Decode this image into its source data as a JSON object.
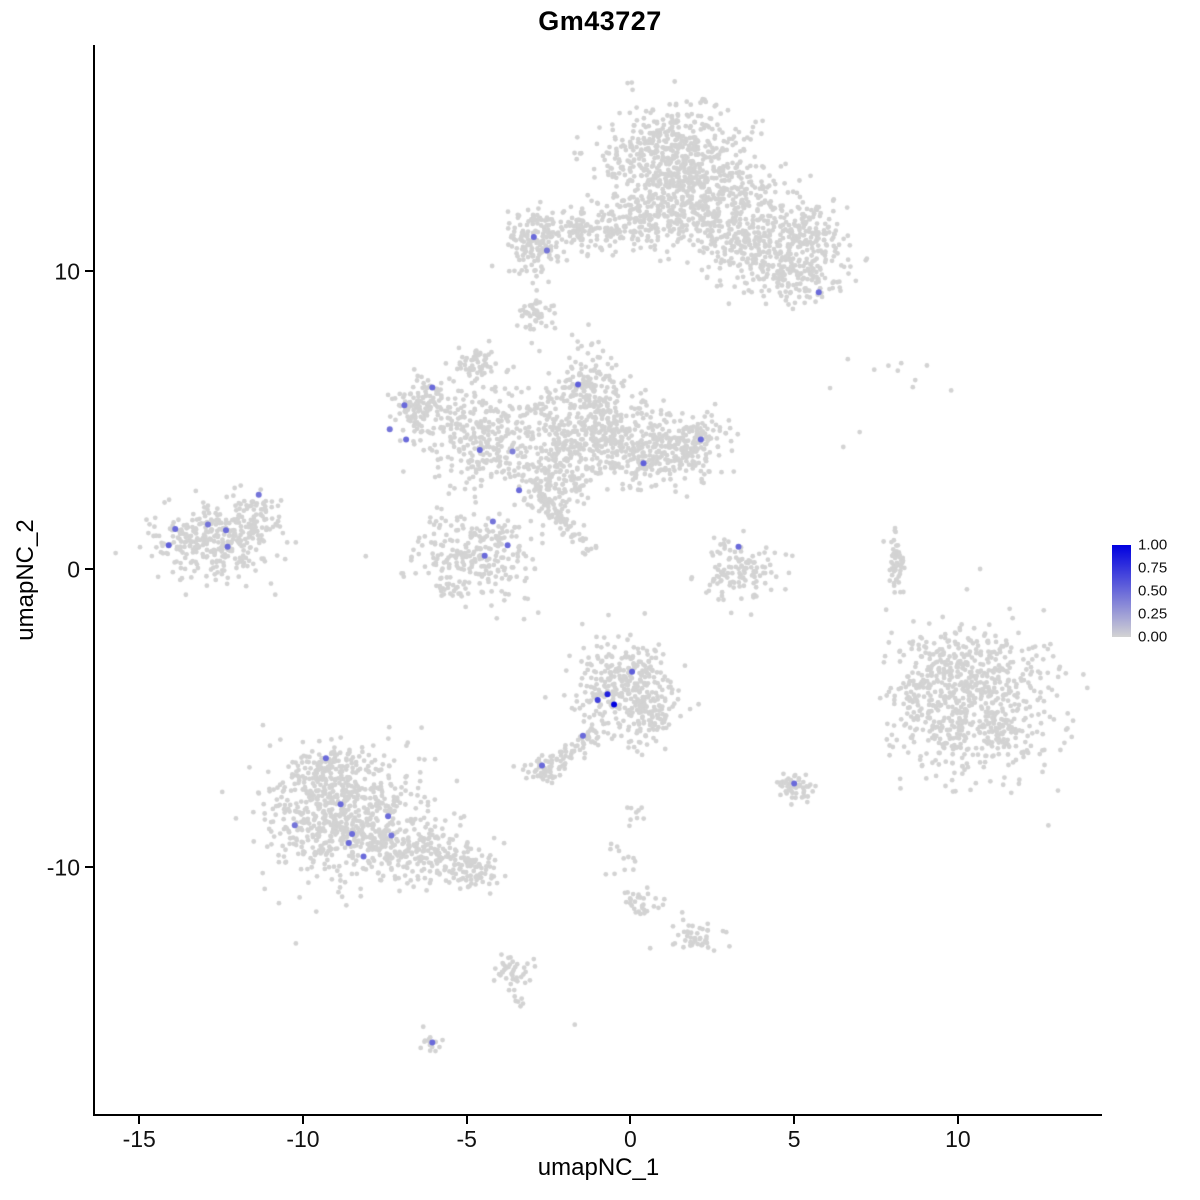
{
  "chart_data": {
    "type": "scatter",
    "title": "Gm43727",
    "xlabel": "umapNC_1",
    "ylabel": "umapNC_2",
    "xlim": [
      -16.35,
      14.4
    ],
    "ylim": [
      -18.3,
      17.6
    ],
    "grid": false,
    "legend_position": "right",
    "x_ticks": [
      {
        "value": -15,
        "label": "-15"
      },
      {
        "value": -10,
        "label": "-10"
      },
      {
        "value": -5,
        "label": "-5"
      },
      {
        "value": 0,
        "label": "0"
      },
      {
        "value": 5,
        "label": "5"
      },
      {
        "value": 10,
        "label": "10"
      }
    ],
    "y_ticks": [
      {
        "value": 10,
        "label": "10"
      },
      {
        "value": 0,
        "label": "0"
      },
      {
        "value": -10,
        "label": "-10"
      }
    ],
    "legend": {
      "ticks": [
        {
          "value": 1.0,
          "label": "1.00"
        },
        {
          "value": 0.75,
          "label": "0.75"
        },
        {
          "value": 0.5,
          "label": "0.50"
        },
        {
          "value": 0.25,
          "label": "0.25"
        },
        {
          "value": 0.0,
          "label": "0.00"
        }
      ]
    },
    "colors": {
      "background": "#ffffff",
      "point_low": "#d3d3d3",
      "point_high": "#0000e0",
      "axis": "#000000",
      "text": "#000000"
    },
    "background_clusters": [
      {
        "cx": 1.3,
        "cy": 13.9,
        "sx": 1.05,
        "sy": 0.85,
        "n": 520
      },
      {
        "cx": 2.5,
        "cy": 12.4,
        "sx": 1.2,
        "sy": 0.75,
        "n": 340
      },
      {
        "cx": 3.7,
        "cy": 11.0,
        "sx": 0.95,
        "sy": 0.7,
        "n": 260
      },
      {
        "cx": 5.0,
        "cy": 9.9,
        "sx": 0.75,
        "sy": 0.55,
        "n": 170
      },
      {
        "cx": 5.6,
        "cy": 11.2,
        "sx": 0.55,
        "sy": 0.6,
        "n": 110
      },
      {
        "cx": 0.3,
        "cy": 11.7,
        "sx": 0.95,
        "sy": 0.5,
        "n": 170
      },
      {
        "cx": -1.5,
        "cy": 11.3,
        "sx": 0.8,
        "sy": 0.4,
        "n": 110
      },
      {
        "cx": -2.9,
        "cy": 11.0,
        "sx": 0.4,
        "sy": 0.55,
        "n": 150
      },
      {
        "cx": -2.9,
        "cy": 8.5,
        "sx": 0.28,
        "sy": 0.28,
        "n": 45
      },
      {
        "cx": -1.2,
        "cy": 4.6,
        "sx": 1.15,
        "sy": 0.8,
        "n": 430
      },
      {
        "cx": -1.3,
        "cy": 6.0,
        "sx": 0.5,
        "sy": 0.5,
        "n": 110
      },
      {
        "cx": -4.6,
        "cy": 4.4,
        "sx": 0.85,
        "sy": 0.85,
        "n": 280
      },
      {
        "cx": -6.3,
        "cy": 5.4,
        "sx": 0.5,
        "sy": 0.55,
        "n": 130
      },
      {
        "cx": -4.7,
        "cy": 6.9,
        "sx": 0.35,
        "sy": 0.28,
        "n": 55
      },
      {
        "cx": 0.9,
        "cy": 3.9,
        "sx": 0.95,
        "sy": 0.6,
        "n": 240
      },
      {
        "cx": 2.0,
        "cy": 4.2,
        "sx": 0.5,
        "sy": 0.45,
        "n": 90
      },
      {
        "cx": -2.4,
        "cy": 3.0,
        "sx": 0.6,
        "sy": 0.6,
        "n": 150
      },
      {
        "type": "line",
        "x1": -2.7,
        "y1": 2.3,
        "x2": -1.1,
        "y2": 0.6,
        "jitter": 0.16,
        "n": 70
      },
      {
        "cx": -4.8,
        "cy": 0.4,
        "sx": 0.9,
        "sy": 0.8,
        "n": 270
      },
      {
        "cx": -1.2,
        "cy": 7.4,
        "sx": 0.7,
        "sy": 0.4,
        "n": 14
      },
      {
        "cx": -12.8,
        "cy": 0.9,
        "sx": 1.0,
        "sy": 0.6,
        "n": 290
      },
      {
        "cx": -11.6,
        "cy": 1.7,
        "sx": 0.55,
        "sy": 0.4,
        "n": 80
      },
      {
        "cx": 3.3,
        "cy": -0.1,
        "sx": 0.6,
        "sy": 0.55,
        "n": 120
      },
      {
        "cx": 8.1,
        "cy": 0.2,
        "sx": 0.14,
        "sy": 0.6,
        "n": 55
      },
      {
        "cx": 8.4,
        "cy": 6.5,
        "sx": 0.9,
        "sy": 0.42,
        "n": 10
      },
      {
        "cx": 10.6,
        "cy": -4.6,
        "sx": 1.15,
        "sy": 1.2,
        "n": 620
      },
      {
        "cx": 9.6,
        "cy": -3.3,
        "sx": 0.7,
        "sy": 0.6,
        "n": 90
      },
      {
        "cx": 8.7,
        "cy": -4.3,
        "sx": 0.45,
        "sy": 0.9,
        "n": 70
      },
      {
        "cx": -0.3,
        "cy": -3.9,
        "sx": 0.75,
        "sy": 0.8,
        "n": 300
      },
      {
        "cx": 0.6,
        "cy": -4.9,
        "sx": 0.45,
        "sy": 0.5,
        "n": 90
      },
      {
        "type": "line",
        "x1": -0.9,
        "y1": -5.3,
        "x2": -2.3,
        "y2": -6.5,
        "jitter": 0.18,
        "n": 55
      },
      {
        "cx": -2.6,
        "cy": -6.7,
        "sx": 0.3,
        "sy": 0.26,
        "n": 55
      },
      {
        "cx": -8.6,
        "cy": -8.4,
        "sx": 1.25,
        "sy": 1.05,
        "n": 680
      },
      {
        "cx": -9.2,
        "cy": -6.8,
        "sx": 0.75,
        "sy": 0.5,
        "n": 140
      },
      {
        "cx": -6.3,
        "cy": -9.6,
        "sx": 0.85,
        "sy": 0.5,
        "n": 190
      },
      {
        "cx": -4.9,
        "cy": -10.2,
        "sx": 0.45,
        "sy": 0.3,
        "n": 60
      },
      {
        "cx": 5.0,
        "cy": -7.3,
        "sx": 0.28,
        "sy": 0.26,
        "n": 50
      },
      {
        "cx": 0.1,
        "cy": -8.3,
        "sx": 0.22,
        "sy": 0.3,
        "n": 9
      },
      {
        "cx": -0.4,
        "cy": -9.8,
        "sx": 0.3,
        "sy": 0.4,
        "n": 12
      },
      {
        "cx": 0.35,
        "cy": -11.2,
        "sx": 0.3,
        "sy": 0.26,
        "n": 30
      },
      {
        "cx": 1.9,
        "cy": -12.4,
        "sx": 0.42,
        "sy": 0.3,
        "n": 45
      },
      {
        "cx": -3.6,
        "cy": -13.6,
        "sx": 0.3,
        "sy": 0.35,
        "n": 40
      },
      {
        "type": "line",
        "x1": -3.5,
        "y1": -14.2,
        "x2": -3.3,
        "y2": -15.2,
        "jitter": 0.1,
        "n": 6
      },
      {
        "cx": -6.0,
        "cy": -15.9,
        "sx": 0.2,
        "sy": 0.18,
        "n": 16
      }
    ],
    "singles": [
      [
        -1.7,
        -15.3
      ],
      [
        7.0,
        4.6
      ],
      [
        6.5,
        4.1
      ]
    ],
    "expressing_cells": [
      {
        "x": -2.95,
        "y": 11.15,
        "value": 0.5
      },
      {
        "x": -2.55,
        "y": 10.7,
        "value": 0.45
      },
      {
        "x": 5.75,
        "y": 9.3,
        "value": 0.5
      },
      {
        "x": -1.6,
        "y": 6.2,
        "value": 0.55
      },
      {
        "x": -6.05,
        "y": 6.1,
        "value": 0.5
      },
      {
        "x": -6.9,
        "y": 5.5,
        "value": 0.5
      },
      {
        "x": -7.35,
        "y": 4.7,
        "value": 0.45
      },
      {
        "x": -6.85,
        "y": 4.35,
        "value": 0.5
      },
      {
        "x": 2.15,
        "y": 4.35,
        "value": 0.5
      },
      {
        "x": 0.4,
        "y": 3.55,
        "value": 0.55
      },
      {
        "x": -4.6,
        "y": 4.0,
        "value": 0.5
      },
      {
        "x": -3.6,
        "y": 3.95,
        "value": 0.4
      },
      {
        "x": -3.4,
        "y": 2.65,
        "value": 0.5
      },
      {
        "x": -4.2,
        "y": 1.6,
        "value": 0.45
      },
      {
        "x": -3.75,
        "y": 0.8,
        "value": 0.5
      },
      {
        "x": -4.45,
        "y": 0.45,
        "value": 0.5
      },
      {
        "x": -11.35,
        "y": 2.5,
        "value": 0.45
      },
      {
        "x": -13.9,
        "y": 1.35,
        "value": 0.5
      },
      {
        "x": -12.9,
        "y": 1.5,
        "value": 0.45
      },
      {
        "x": -12.35,
        "y": 1.3,
        "value": 0.5
      },
      {
        "x": -14.1,
        "y": 0.8,
        "value": 0.55
      },
      {
        "x": -12.3,
        "y": 0.75,
        "value": 0.5
      },
      {
        "x": 3.3,
        "y": 0.75,
        "value": 0.5
      },
      {
        "x": 0.05,
        "y": -3.45,
        "value": 0.55
      },
      {
        "x": -0.7,
        "y": -4.2,
        "value": 0.85
      },
      {
        "x": -0.5,
        "y": -4.55,
        "value": 1.0
      },
      {
        "x": -1.0,
        "y": -4.4,
        "value": 0.7
      },
      {
        "x": -1.45,
        "y": -5.6,
        "value": 0.5
      },
      {
        "x": -2.7,
        "y": -6.6,
        "value": 0.5
      },
      {
        "x": -9.3,
        "y": -6.35,
        "value": 0.5
      },
      {
        "x": -8.85,
        "y": -7.9,
        "value": 0.5
      },
      {
        "x": -10.25,
        "y": -8.6,
        "value": 0.45
      },
      {
        "x": -8.5,
        "y": -8.9,
        "value": 0.5
      },
      {
        "x": -7.4,
        "y": -8.3,
        "value": 0.5
      },
      {
        "x": -7.3,
        "y": -8.95,
        "value": 0.45
      },
      {
        "x": -8.6,
        "y": -9.2,
        "value": 0.5
      },
      {
        "x": -8.15,
        "y": -9.65,
        "value": 0.5
      },
      {
        "x": 5.0,
        "y": -7.2,
        "value": 0.5
      },
      {
        "x": -6.05,
        "y": -15.9,
        "value": 0.5
      }
    ]
  }
}
